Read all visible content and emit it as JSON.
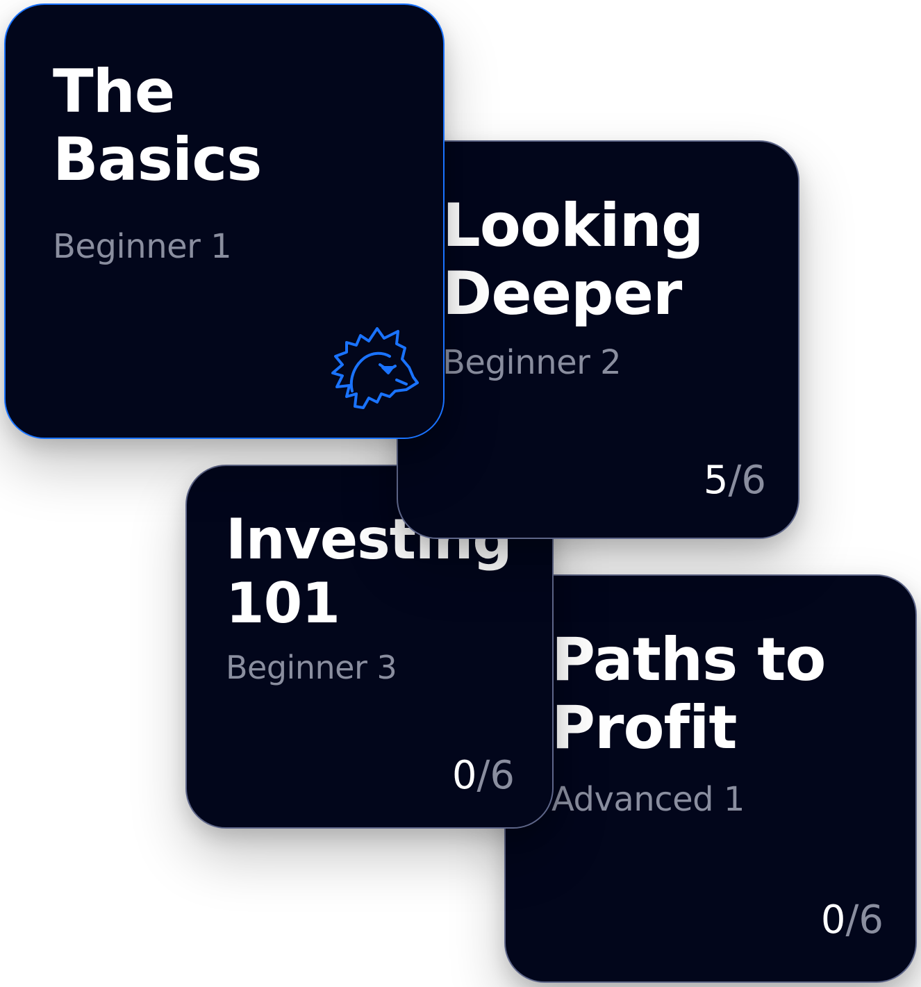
{
  "cards": [
    {
      "title_line1": "The",
      "title_line2": "Basics",
      "level": "Beginner 1",
      "icon": "lion-head-icon",
      "accent_color": "#1a73ff",
      "state": "active"
    },
    {
      "title_line1": "Looking",
      "title_line2": "Deeper",
      "level": "Beginner 2",
      "progress_done": "5",
      "progress_sep": "/",
      "progress_total": "6"
    },
    {
      "title_line1": "Investing",
      "title_line2": "101",
      "level": "Beginner 3",
      "progress_done": "0",
      "progress_sep": "/",
      "progress_total": "6"
    },
    {
      "title_line1": "Paths to",
      "title_line2": "Profit",
      "level": "Advanced 1",
      "progress_done": "0",
      "progress_sep": "/",
      "progress_total": "6"
    }
  ],
  "colors": {
    "card_background": "#02061b",
    "card_border": "#5e6689",
    "title_text": "#ffffff",
    "muted_text": "#8a8e9f"
  }
}
